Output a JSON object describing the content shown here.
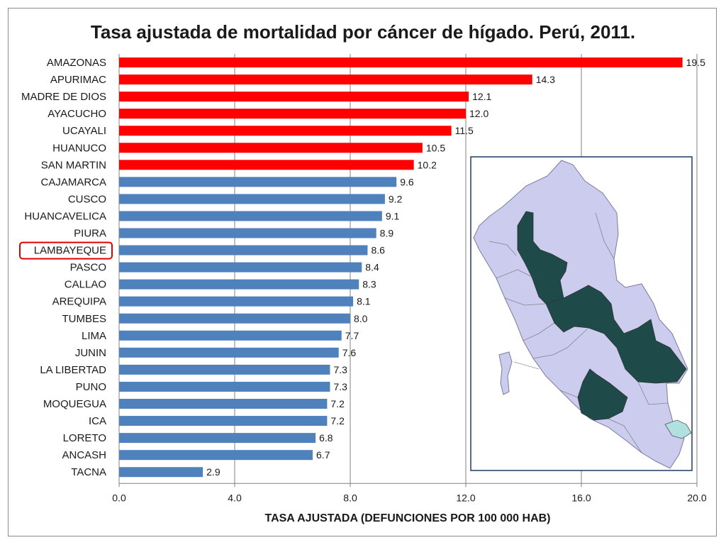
{
  "chart_data": {
    "type": "bar",
    "orientation": "horizontal",
    "title": "Tasa ajustada de mortalidad por cáncer de hígado. Perú, 2011.",
    "xlabel": "TASA AJUSTADA (DEFUNCIONES POR 100 000 HAB)",
    "ylabel": "",
    "xlim": [
      0,
      20
    ],
    "ticks": [
      "0.0",
      "4.0",
      "8.0",
      "12.0",
      "16.0",
      "20.0"
    ],
    "grid": "vertical",
    "categories": [
      "AMAZONAS",
      "APURIMAC",
      "MADRE DE DIOS",
      "AYACUCHO",
      "UCAYALI",
      "HUANUCO",
      "SAN MARTIN",
      "CAJAMARCA",
      "CUSCO",
      "HUANCAVELICA",
      "PIURA",
      "LAMBAYEQUE",
      "PASCO",
      "CALLAO",
      "AREQUIPA",
      "TUMBES",
      "LIMA",
      "JUNIN",
      "LA LIBERTAD",
      "PUNO",
      "MOQUEGUA",
      "ICA",
      "LORETO",
      "ANCASH",
      "TACNA"
    ],
    "values": [
      19.5,
      14.3,
      12.1,
      12.0,
      11.5,
      10.5,
      10.2,
      9.6,
      9.2,
      9.1,
      8.9,
      8.6,
      8.4,
      8.3,
      8.1,
      8.0,
      7.7,
      7.6,
      7.3,
      7.3,
      7.2,
      7.2,
      6.8,
      6.7,
      2.9
    ],
    "value_labels": [
      "19.5",
      "14.3",
      "12.1",
      "12.0",
      "11.5",
      "10.5",
      "10.2",
      "9.6",
      "9.2",
      "9.1",
      "8.9",
      "8.6",
      "8.4",
      "8.3",
      "8.1",
      "8.0",
      "7.7",
      "7.6",
      "7.3",
      "7.3",
      "7.2",
      "7.2",
      "6.8",
      "6.7",
      "2.9"
    ],
    "highlight_count": 7,
    "highlighted_category": "LAMBAYEQUE",
    "colors": {
      "high": "#ff0000",
      "normal": "#4f81bd",
      "grid": "#808080",
      "map_base": "#ccccee",
      "map_dark": "#1f4a4a",
      "map_light": "#b0e0e0"
    }
  }
}
